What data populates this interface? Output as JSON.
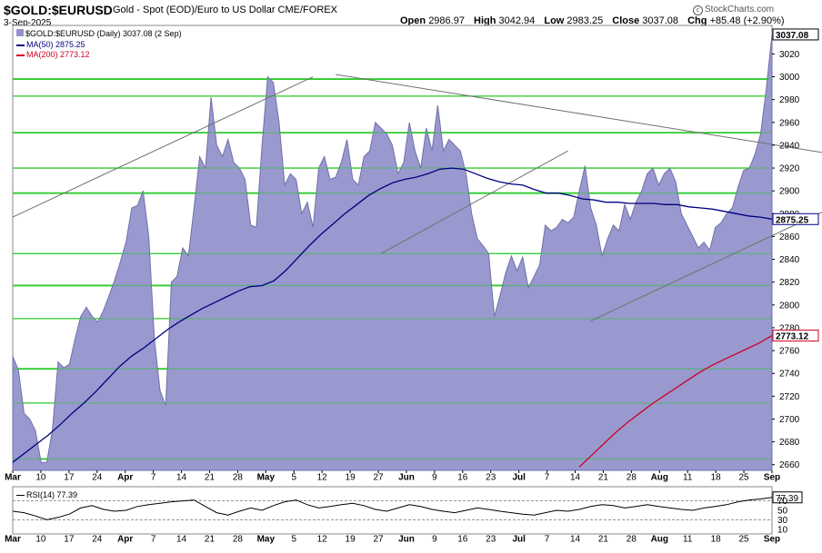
{
  "header": {
    "ticker": "$GOLD:$EURUSD",
    "description": "Gold - Spot (EOD)/Euro to US Dollar  CME/FOREX",
    "date": "3-Sep-2025",
    "watermark": "StockCharts.com",
    "ohlc": {
      "open_label": "Open",
      "open": "2986.97",
      "high_label": "High",
      "high": "3042.94",
      "low_label": "Low",
      "low": "2983.25",
      "close_label": "Close",
      "close": "3037.08",
      "chg_label": "Chg",
      "chg": "+85.48 (+2.90%)"
    }
  },
  "legend": {
    "price": "$GOLD:$EURUSD (Daily) 3037.08 (2 Sep)",
    "ma50": "MA(50) 2875.25",
    "ma200": "MA(200) 2773.12"
  },
  "rsi_legend": "RSI(14) 77.39",
  "colors": {
    "area_fill": "#9494cc",
    "area_line": "#7070a8",
    "ma50": "#000080",
    "ma200": "#cc0022",
    "hlines": "#2ecc2e",
    "trend": "#707070"
  },
  "chart_data": [
    {
      "type": "area",
      "title": "$GOLD:$EURUSD",
      "ylim": [
        2655,
        3045
      ],
      "y_ticks": [
        2660,
        2680,
        2700,
        2720,
        2740,
        2760,
        2780,
        2800,
        2820,
        2840,
        2860,
        2880,
        2900,
        2920,
        2940,
        2960,
        2980,
        3000,
        3020
      ],
      "x_tick_labels": [
        "Mar",
        "10",
        "17",
        "24",
        "Apr",
        "7",
        "14",
        "21",
        "28",
        "May",
        "5",
        "12",
        "19",
        "27",
        "Jun",
        "9",
        "16",
        "23",
        "Jul",
        "7",
        "14",
        "21",
        "28",
        "Aug",
        "11",
        "18",
        "25",
        "Sep"
      ],
      "last_value_tags": {
        "price": "3037.08",
        "ma50": "2875.25",
        "ma200": "2773.12"
      },
      "horizontal_levels": [
        2665,
        2714,
        2744,
        2788,
        2817,
        2845,
        2898,
        2920,
        2951,
        2983,
        2998
      ],
      "trendlines": [
        {
          "points": [
            [
              0,
              2877
            ],
            [
              53,
              3000
            ]
          ]
        },
        {
          "points": [
            [
              57,
              3002
            ],
            [
              160,
              2920
            ]
          ]
        },
        {
          "points": [
            [
              65,
              2845
            ],
            [
              98,
              2935
            ]
          ]
        },
        {
          "points": [
            [
              102,
              2786
            ],
            [
              156,
              2912
            ]
          ]
        }
      ],
      "series": [
        {
          "name": "$GOLD:$EURUSD",
          "values": [
            2755,
            2743,
            2705,
            2700,
            2690,
            2662,
            2662,
            2690,
            2750,
            2745,
            2748,
            2770,
            2790,
            2798,
            2790,
            2785,
            2795,
            2808,
            2822,
            2838,
            2855,
            2885,
            2887,
            2900,
            2860,
            2770,
            2725,
            2712,
            2820,
            2825,
            2850,
            2843,
            2885,
            2930,
            2920,
            2982,
            2940,
            2930,
            2945,
            2925,
            2920,
            2910,
            2870,
            2868,
            2940,
            3000,
            2995,
            2960,
            2905,
            2915,
            2910,
            2880,
            2890,
            2868,
            2920,
            2930,
            2910,
            2912,
            2925,
            2945,
            2910,
            2905,
            2930,
            2935,
            2960,
            2955,
            2950,
            2940,
            2915,
            2925,
            2960,
            2935,
            2920,
            2955,
            2935,
            2975,
            2935,
            2945,
            2940,
            2935,
            2915,
            2880,
            2858,
            2852,
            2845,
            2790,
            2808,
            2828,
            2843,
            2830,
            2842,
            2815,
            2825,
            2835,
            2870,
            2865,
            2868,
            2875,
            2872,
            2877,
            2900,
            2922,
            2885,
            2870,
            2843,
            2858,
            2870,
            2865,
            2888,
            2875,
            2890,
            2900,
            2915,
            2920,
            2905,
            2915,
            2920,
            2908,
            2880,
            2870,
            2860,
            2850,
            2855,
            2848,
            2868,
            2872,
            2880,
            2885,
            2903,
            2918,
            2920,
            2932,
            2950,
            2990,
            3037
          ]
        },
        {
          "name": "MA(50)",
          "values": [
            2662,
            2670,
            2678,
            2686,
            2695,
            2705,
            2714,
            2724,
            2735,
            2746,
            2755,
            2762,
            2770,
            2778,
            2785,
            2791,
            2797,
            2802,
            2807,
            2812,
            2816,
            2817,
            2821,
            2830,
            2841,
            2852,
            2862,
            2871,
            2880,
            2888,
            2896,
            2902,
            2907,
            2910,
            2912,
            2915,
            2919,
            2920,
            2919,
            2915,
            2911,
            2908,
            2906,
            2905,
            2901,
            2898,
            2898,
            2896,
            2893,
            2892,
            2890,
            2890,
            2889,
            2889,
            2889,
            2888,
            2888,
            2886,
            2885,
            2884,
            2882,
            2880,
            2878,
            2877,
            2875.25
          ]
        },
        {
          "name": "MA(200)",
          "values": [
            2658,
            2668,
            2678,
            2688,
            2697,
            2705,
            2713,
            2720,
            2727,
            2734,
            2741,
            2747,
            2752,
            2757,
            2762,
            2767,
            2773.12
          ]
        }
      ]
    },
    {
      "type": "line",
      "title": "RSI(14)",
      "ylim": [
        0,
        100
      ],
      "y_ticks": [
        77.39,
        70,
        50,
        30,
        10
      ],
      "reference_levels": [
        70,
        30
      ],
      "series": [
        {
          "name": "RSI(14)",
          "values": [
            48,
            45,
            38,
            30,
            35,
            42,
            55,
            60,
            52,
            48,
            50,
            58,
            62,
            65,
            68,
            70,
            72,
            58,
            45,
            40,
            48,
            55,
            50,
            60,
            68,
            72,
            62,
            55,
            58,
            62,
            65,
            60,
            52,
            48,
            55,
            62,
            58,
            52,
            48,
            45,
            50,
            55,
            52,
            48,
            45,
            42,
            40,
            45,
            50,
            48,
            52,
            58,
            62,
            60,
            55,
            58,
            62,
            58,
            55,
            52,
            50,
            55,
            58,
            62,
            68,
            72,
            74,
            77.39
          ]
        }
      ]
    }
  ]
}
